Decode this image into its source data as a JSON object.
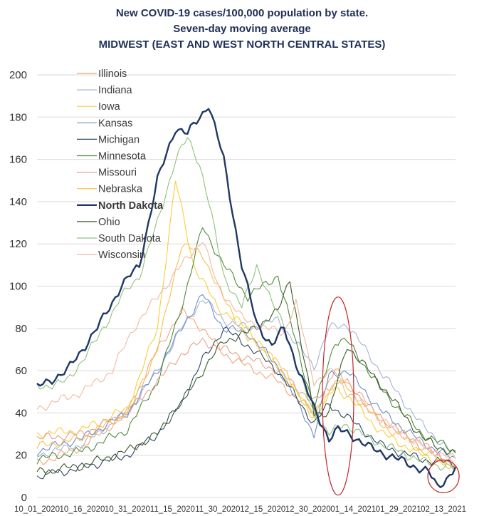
{
  "chart_data": {
    "type": "line",
    "title": [
      "New COVID-19 cases/100,000 population by state.",
      "Seven-day moving average",
      "MIDWEST (EAST AND WEST NORTH CENTRAL STATES)"
    ],
    "xlabel": "",
    "ylabel": "",
    "ylim": [
      0,
      200
    ],
    "yticks": [
      0,
      20,
      40,
      60,
      80,
      100,
      120,
      140,
      160,
      180,
      200
    ],
    "xtick_labels": [
      "10_01_2020",
      "10_16_2020",
      "10_31_2020",
      "11_15_2020",
      "11_30_2020",
      "12_15_2020",
      "12_30_2020",
      "01_14_2021",
      "01_29_2021",
      "02_13_2021"
    ],
    "grid": "horizontal",
    "legend_position": "top-left",
    "n_points": 140,
    "series": [
      {
        "name": "Illinois",
        "color": "#f2a878",
        "width": 1.1,
        "anchors": [
          [
            0,
            16
          ],
          [
            15,
            24
          ],
          [
            30,
            40
          ],
          [
            40,
            70
          ],
          [
            48,
            88
          ],
          [
            55,
            80
          ],
          [
            62,
            68
          ],
          [
            70,
            62
          ],
          [
            80,
            55
          ],
          [
            92,
            40
          ],
          [
            99,
            60
          ],
          [
            103,
            55
          ],
          [
            115,
            36
          ],
          [
            128,
            25
          ],
          [
            139,
            15
          ]
        ]
      },
      {
        "name": "Indiana",
        "color": "#a6b3d6",
        "width": 1.1,
        "anchors": [
          [
            0,
            20
          ],
          [
            15,
            25
          ],
          [
            30,
            40
          ],
          [
            40,
            60
          ],
          [
            48,
            80
          ],
          [
            55,
            94
          ],
          [
            62,
            84
          ],
          [
            70,
            80
          ],
          [
            80,
            84
          ],
          [
            92,
            62
          ],
          [
            97,
            80
          ],
          [
            103,
            82
          ],
          [
            115,
            58
          ],
          [
            128,
            34
          ],
          [
            139,
            20
          ]
        ]
      },
      {
        "name": "Iowa",
        "color": "#f7cf3a",
        "width": 1.1,
        "anchors": [
          [
            0,
            30
          ],
          [
            15,
            32
          ],
          [
            30,
            42
          ],
          [
            40,
            80
          ],
          [
            46,
            150
          ],
          [
            52,
            110
          ],
          [
            60,
            90
          ],
          [
            70,
            80
          ],
          [
            80,
            62
          ],
          [
            92,
            38
          ],
          [
            99,
            52
          ],
          [
            103,
            48
          ],
          [
            115,
            30
          ],
          [
            128,
            20
          ],
          [
            139,
            14
          ]
        ]
      },
      {
        "name": "Kansas",
        "color": "#6f8fca",
        "width": 1.1,
        "anchors": [
          [
            0,
            22
          ],
          [
            15,
            28
          ],
          [
            30,
            40
          ],
          [
            40,
            60
          ],
          [
            48,
            80
          ],
          [
            55,
            96
          ],
          [
            62,
            80
          ],
          [
            70,
            78
          ],
          [
            80,
            62
          ],
          [
            92,
            30
          ],
          [
            97,
            58
          ],
          [
            103,
            60
          ],
          [
            115,
            40
          ],
          [
            128,
            26
          ],
          [
            139,
            18
          ]
        ]
      },
      {
        "name": "Michigan",
        "color": "#2f4763",
        "width": 1.1,
        "anchors": [
          [
            0,
            10
          ],
          [
            15,
            14
          ],
          [
            30,
            20
          ],
          [
            40,
            30
          ],
          [
            48,
            45
          ],
          [
            55,
            65
          ],
          [
            62,
            80
          ],
          [
            70,
            72
          ],
          [
            80,
            60
          ],
          [
            92,
            35
          ],
          [
            97,
            44
          ],
          [
            103,
            38
          ],
          [
            115,
            24
          ],
          [
            128,
            18
          ],
          [
            139,
            16
          ]
        ]
      },
      {
        "name": "Minnesota",
        "color": "#4f8a3a",
        "width": 1.1,
        "anchors": [
          [
            0,
            18
          ],
          [
            15,
            22
          ],
          [
            30,
            32
          ],
          [
            40,
            55
          ],
          [
            48,
            90
          ],
          [
            55,
            128
          ],
          [
            62,
            110
          ],
          [
            70,
            95
          ],
          [
            80,
            105
          ],
          [
            92,
            42
          ],
          [
            99,
            74
          ],
          [
            103,
            74
          ],
          [
            115,
            50
          ],
          [
            128,
            30
          ],
          [
            139,
            22
          ]
        ]
      },
      {
        "name": "Missouri",
        "color": "#e6a08c",
        "width": 1.1,
        "anchors": [
          [
            0,
            28
          ],
          [
            15,
            30
          ],
          [
            30,
            40
          ],
          [
            40,
            55
          ],
          [
            48,
            68
          ],
          [
            55,
            74
          ],
          [
            62,
            70
          ],
          [
            70,
            66
          ],
          [
            80,
            60
          ],
          [
            92,
            45
          ],
          [
            99,
            55
          ],
          [
            103,
            54
          ],
          [
            115,
            36
          ],
          [
            128,
            24
          ],
          [
            139,
            15
          ]
        ]
      },
      {
        "name": "Nebraska",
        "color": "#f4c24a",
        "width": 1.1,
        "anchors": [
          [
            0,
            24
          ],
          [
            15,
            28
          ],
          [
            30,
            40
          ],
          [
            40,
            70
          ],
          [
            48,
            120
          ],
          [
            55,
            115
          ],
          [
            62,
            94
          ],
          [
            70,
            75
          ],
          [
            80,
            64
          ],
          [
            92,
            38
          ],
          [
            99,
            55
          ],
          [
            103,
            52
          ],
          [
            115,
            34
          ],
          [
            128,
            22
          ],
          [
            139,
            14
          ]
        ]
      },
      {
        "name": "North Dakota",
        "color": "#203864",
        "width": 2.4,
        "bold": true,
        "anchors": [
          [
            0,
            52
          ],
          [
            10,
            60
          ],
          [
            20,
            80
          ],
          [
            28,
            100
          ],
          [
            34,
            110
          ],
          [
            40,
            150
          ],
          [
            46,
            175
          ],
          [
            50,
            172
          ],
          [
            54,
            180
          ],
          [
            57,
            186
          ],
          [
            62,
            160
          ],
          [
            68,
            110
          ],
          [
            73,
            82
          ],
          [
            78,
            72
          ],
          [
            82,
            80
          ],
          [
            87,
            60
          ],
          [
            92,
            42
          ],
          [
            97,
            28
          ],
          [
            100,
            32
          ],
          [
            104,
            30
          ],
          [
            110,
            24
          ],
          [
            120,
            18
          ],
          [
            130,
            12
          ],
          [
            133,
            5
          ],
          [
            136,
            9
          ],
          [
            139,
            14
          ]
        ]
      },
      {
        "name": "Ohio",
        "color": "#3b5a26",
        "width": 1.1,
        "anchors": [
          [
            0,
            12
          ],
          [
            15,
            15
          ],
          [
            30,
            22
          ],
          [
            40,
            30
          ],
          [
            48,
            45
          ],
          [
            55,
            60
          ],
          [
            62,
            74
          ],
          [
            70,
            78
          ],
          [
            80,
            88
          ],
          [
            84,
            104
          ],
          [
            88,
            70
          ],
          [
            92,
            40
          ],
          [
            97,
            40
          ],
          [
            103,
            72
          ],
          [
            115,
            52
          ],
          [
            128,
            28
          ],
          [
            139,
            20
          ]
        ]
      },
      {
        "name": "South Dakota",
        "color": "#8fc27b",
        "width": 1.1,
        "anchors": [
          [
            0,
            52
          ],
          [
            10,
            55
          ],
          [
            20,
            75
          ],
          [
            28,
            95
          ],
          [
            34,
            105
          ],
          [
            40,
            130
          ],
          [
            46,
            160
          ],
          [
            50,
            170
          ],
          [
            54,
            158
          ],
          [
            57,
            140
          ],
          [
            62,
            105
          ],
          [
            68,
            90
          ],
          [
            73,
            110
          ],
          [
            78,
            92
          ],
          [
            82,
            82
          ],
          [
            87,
            58
          ],
          [
            92,
            40
          ],
          [
            97,
            30
          ],
          [
            102,
            35
          ],
          [
            110,
            28
          ],
          [
            120,
            22
          ],
          [
            130,
            16
          ],
          [
            139,
            14
          ]
        ]
      },
      {
        "name": "Wisconsin",
        "color": "#f1b8a3",
        "width": 1.1,
        "anchors": [
          [
            0,
            42
          ],
          [
            15,
            50
          ],
          [
            25,
            60
          ],
          [
            32,
            80
          ],
          [
            40,
            95
          ],
          [
            48,
            110
          ],
          [
            55,
            122
          ],
          [
            60,
            100
          ],
          [
            68,
            85
          ],
          [
            76,
            80
          ],
          [
            82,
            78
          ],
          [
            86,
            92
          ],
          [
            92,
            55
          ],
          [
            99,
            60
          ],
          [
            103,
            50
          ],
          [
            115,
            36
          ],
          [
            128,
            24
          ],
          [
            139,
            18
          ]
        ]
      }
    ],
    "annotations": [
      {
        "shape": "ellipse",
        "color": "#c0282c",
        "x_index": 100,
        "y_center": 48,
        "note": ""
      },
      {
        "shape": "ellipse",
        "color": "#c0282c",
        "x_index": 135,
        "y_center": 10,
        "note": ""
      }
    ]
  }
}
